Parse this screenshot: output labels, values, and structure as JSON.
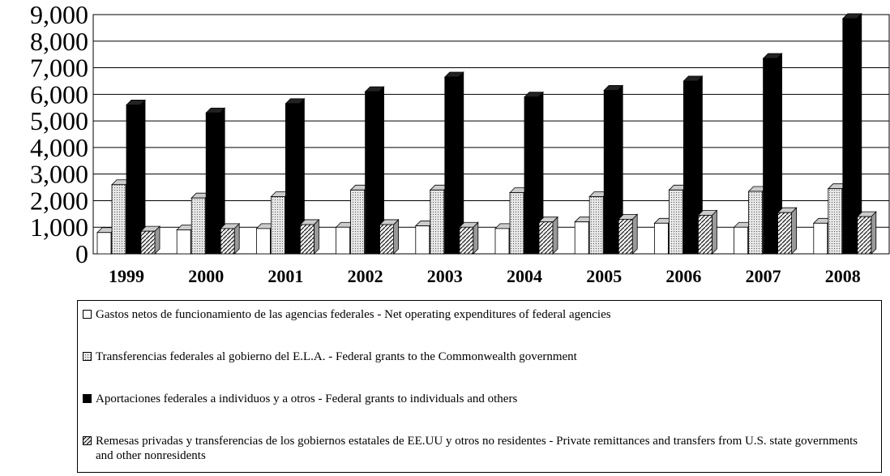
{
  "chart_data": {
    "type": "bar",
    "categories": [
      "1999",
      "2000",
      "2001",
      "2002",
      "2003",
      "2004",
      "2005",
      "2006",
      "2007",
      "2008"
    ],
    "series": [
      {
        "name": "Gastos netos de funcionamiento de las agencias federales - Net operating expenditures of federal agencies",
        "color": "#ffffff",
        "pattern": "none",
        "values": [
          800,
          900,
          950,
          1000,
          1050,
          950,
          1200,
          1150,
          1000,
          1150
        ]
      },
      {
        "name": "Transferencias federales al gobierno del E.L.A. - Federal grants to the Commonwealth government",
        "color": "#d0d0d0",
        "pattern": "dots",
        "values": [
          2600,
          2100,
          2150,
          2400,
          2400,
          2300,
          2150,
          2400,
          2350,
          2450
        ]
      },
      {
        "name": "Aportaciones federales a individuos y a otros - Federal grants to individuals and others",
        "color": "#000000",
        "pattern": "none",
        "values": [
          5600,
          5300,
          5650,
          6100,
          6650,
          5900,
          6150,
          6500,
          7350,
          8850
        ]
      },
      {
        "name": "Remesas privadas y transferencias de los gobiernos estatales de EE.UU y otros no residentes - Private remittances and transfers from U.S. state governments and other nonresidents",
        "color": "#e8e8e8",
        "pattern": "diagonal",
        "values": [
          850,
          950,
          1100,
          1100,
          1000,
          1200,
          1300,
          1450,
          1550,
          1400
        ]
      }
    ],
    "ylim": [
      0,
      9000
    ],
    "yticks": [
      0,
      {
        "value": 1000,
        "label": "1,000"
      },
      {
        "value": 2000,
        "label": "2,000"
      },
      {
        "value": 3000,
        "label": "3,000"
      },
      {
        "value": 4000,
        "label": "4,000"
      },
      {
        "value": 5000,
        "label": "5,000"
      },
      {
        "value": 6000,
        "label": "6,000"
      },
      {
        "value": 7000,
        "label": "7,000"
      },
      {
        "value": 8000,
        "label": "8,000"
      },
      {
        "value": 9000,
        "label": "9,000"
      }
    ],
    "grid": true
  }
}
